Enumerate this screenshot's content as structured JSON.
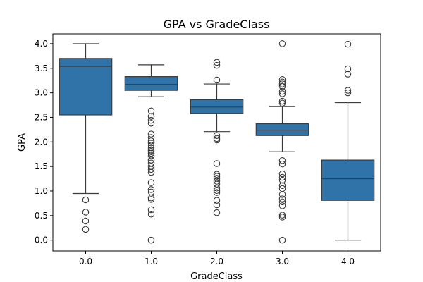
{
  "chart_data": {
    "type": "box",
    "title": "GPA vs GradeClass",
    "xlabel": "GradeClass",
    "ylabel": "GPA",
    "ylim": [
      -0.22,
      4.2
    ],
    "yticks": [
      0.0,
      0.5,
      1.0,
      1.5,
      2.0,
      2.5,
      3.0,
      3.5,
      4.0
    ],
    "ytick_labels": [
      "0.0",
      "0.5",
      "1.0",
      "1.5",
      "2.0",
      "2.5",
      "3.0",
      "3.5",
      "4.0"
    ],
    "categories": [
      "0.0",
      "1.0",
      "2.0",
      "3.0",
      "4.0"
    ],
    "box_color": "#2f73a8",
    "line_color": "#3a3a3a",
    "grid": false,
    "boxes": [
      {
        "category": "0.0",
        "whisker_low": 0.95,
        "q1": 2.55,
        "median": 3.54,
        "q3": 3.7,
        "whisker_high": 4.0,
        "outliers": [
          0.82,
          0.57,
          0.39,
          0.22
        ]
      },
      {
        "category": "1.0",
        "whisker_low": 2.92,
        "q1": 3.05,
        "median": 3.17,
        "q3": 3.33,
        "whisker_high": 3.57,
        "outliers": [
          2.63,
          2.52,
          2.44,
          2.38,
          2.16,
          2.09,
          2.02,
          1.98,
          1.93,
          1.88,
          1.83,
          1.8,
          1.77,
          1.72,
          1.63,
          1.57,
          1.5,
          1.44,
          1.38,
          1.17,
          1.03,
          0.98,
          0.86,
          0.83,
          0.62,
          0.53,
          0.0,
          0.0
        ]
      },
      {
        "category": "2.0",
        "whisker_low": 2.21,
        "q1": 2.58,
        "median": 2.71,
        "q3": 2.86,
        "whisker_high": 3.18,
        "outliers": [
          3.62,
          3.56,
          3.26,
          2.13,
          2.07,
          2.04,
          1.56,
          1.34,
          1.3,
          1.26,
          1.2,
          1.14,
          1.06,
          1.01,
          0.97,
          0.81,
          0.72,
          0.56
        ]
      },
      {
        "category": "3.0",
        "whisker_low": 1.8,
        "q1": 2.13,
        "median": 2.24,
        "q3": 2.37,
        "whisker_high": 2.72,
        "outliers": [
          4.0,
          3.27,
          3.22,
          3.18,
          3.13,
          3.03,
          2.98,
          2.83,
          2.79,
          1.62,
          1.55,
          1.35,
          1.28,
          1.22,
          1.11,
          1.05,
          0.93,
          0.84,
          0.78,
          0.7,
          0.51,
          0.47,
          0.0
        ]
      },
      {
        "category": "4.0",
        "whisker_low": 0.0,
        "q1": 0.81,
        "median": 1.25,
        "q3": 1.63,
        "whisker_high": 2.8,
        "outliers": [
          3.99,
          3.49,
          3.38,
          3.05,
          3.0
        ]
      }
    ]
  }
}
